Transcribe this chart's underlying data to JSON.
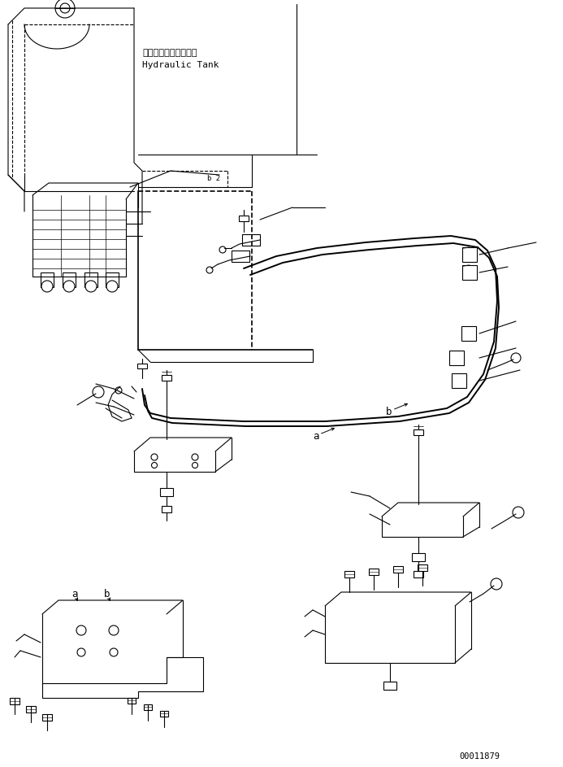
{
  "background_color": "#ffffff",
  "line_color": "#000000",
  "lw": 0.8,
  "lw_thick": 1.2,
  "lw_hose": 1.4,
  "part_number": "00011879",
  "label_japanese": "ハイドロリックタンク",
  "label_english": "Hydraulic Tank",
  "font_size": 7.5,
  "font_family": "monospace"
}
